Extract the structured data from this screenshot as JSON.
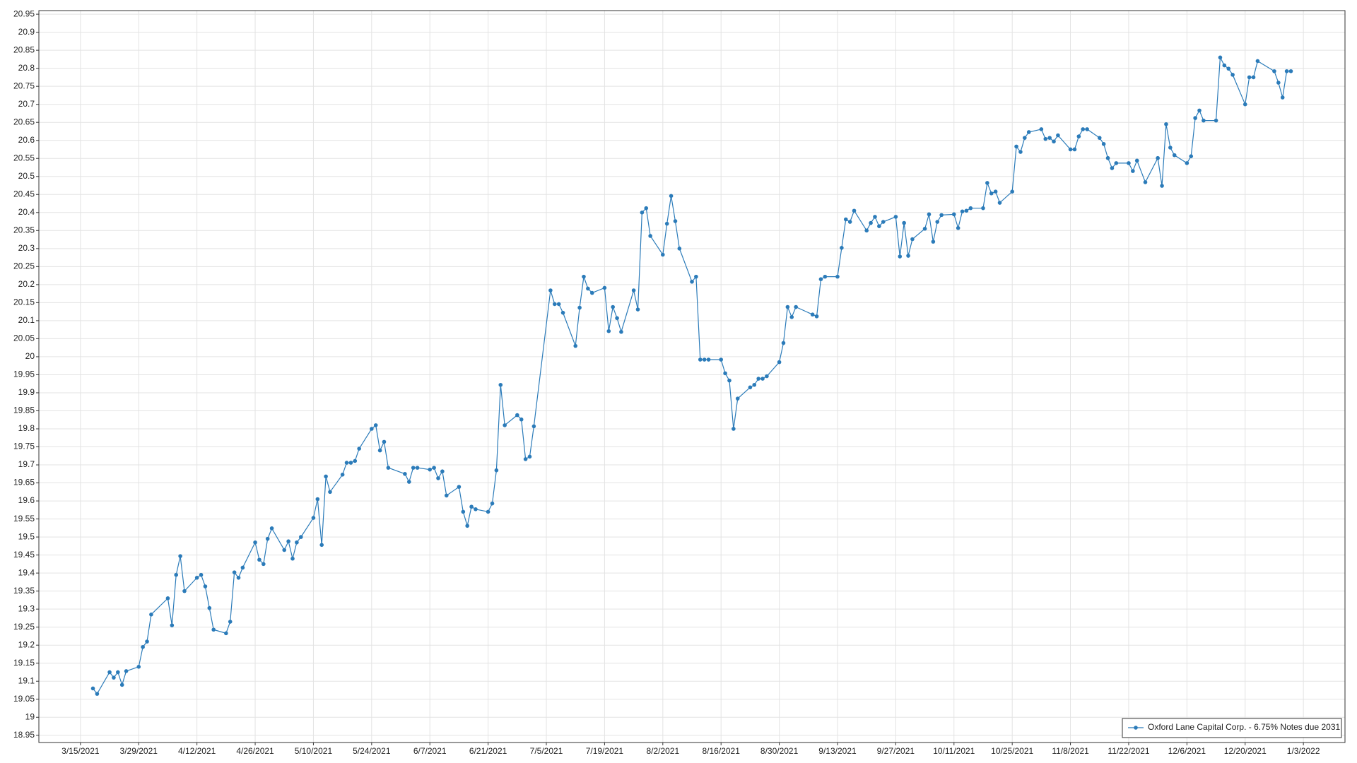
{
  "chart_data": {
    "type": "line",
    "x": [
      "3/18/2021",
      "3/19/2021",
      "3/22/2021",
      "3/23/2021",
      "3/24/2021",
      "3/25/2021",
      "3/26/2021",
      "3/29/2021",
      "3/30/2021",
      "3/31/2021",
      "4/1/2021",
      "4/5/2021",
      "4/6/2021",
      "4/7/2021",
      "4/8/2021",
      "4/9/2021",
      "4/12/2021",
      "4/13/2021",
      "4/14/2021",
      "4/15/2021",
      "4/16/2021",
      "4/19/2021",
      "4/20/2021",
      "4/21/2021",
      "4/22/2021",
      "4/23/2021",
      "4/26/2021",
      "4/27/2021",
      "4/28/2021",
      "4/29/2021",
      "4/30/2021",
      "5/3/2021",
      "5/4/2021",
      "5/5/2021",
      "5/6/2021",
      "5/7/2021",
      "5/10/2021",
      "5/11/2021",
      "5/12/2021",
      "5/13/2021",
      "5/14/2021",
      "5/17/2021",
      "5/18/2021",
      "5/19/2021",
      "5/20/2021",
      "5/21/2021",
      "5/24/2021",
      "5/25/2021",
      "5/26/2021",
      "5/27/2021",
      "5/28/2021",
      "6/1/2021",
      "6/2/2021",
      "6/3/2021",
      "6/4/2021",
      "6/7/2021",
      "6/8/2021",
      "6/9/2021",
      "6/10/2021",
      "6/11/2021",
      "6/14/2021",
      "6/15/2021",
      "6/16/2021",
      "6/17/2021",
      "6/18/2021",
      "6/21/2021",
      "6/22/2021",
      "6/23/2021",
      "6/24/2021",
      "6/25/2021",
      "6/28/2021",
      "6/29/2021",
      "6/30/2021",
      "7/1/2021",
      "7/2/2021",
      "7/6/2021",
      "7/7/2021",
      "7/8/2021",
      "7/9/2021",
      "7/12/2021",
      "7/13/2021",
      "7/14/2021",
      "7/15/2021",
      "7/16/2021",
      "7/19/2021",
      "7/20/2021",
      "7/21/2021",
      "7/22/2021",
      "7/23/2021",
      "7/26/2021",
      "7/27/2021",
      "7/28/2021",
      "7/29/2021",
      "7/30/2021",
      "8/2/2021",
      "8/3/2021",
      "8/4/2021",
      "8/5/2021",
      "8/6/2021",
      "8/9/2021",
      "8/10/2021",
      "8/11/2021",
      "8/12/2021",
      "8/13/2021",
      "8/16/2021",
      "8/17/2021",
      "8/18/2021",
      "8/19/2021",
      "8/20/2021",
      "8/23/2021",
      "8/24/2021",
      "8/25/2021",
      "8/26/2021",
      "8/27/2021",
      "8/30/2021",
      "8/31/2021",
      "9/1/2021",
      "9/2/2021",
      "9/3/2021",
      "9/7/2021",
      "9/8/2021",
      "9/9/2021",
      "9/10/2021",
      "9/13/2021",
      "9/14/2021",
      "9/15/2021",
      "9/16/2021",
      "9/17/2021",
      "9/20/2021",
      "9/21/2021",
      "9/22/2021",
      "9/23/2021",
      "9/24/2021",
      "9/27/2021",
      "9/28/2021",
      "9/29/2021",
      "9/30/2021",
      "10/1/2021",
      "10/4/2021",
      "10/5/2021",
      "10/6/2021",
      "10/7/2021",
      "10/8/2021",
      "10/11/2021",
      "10/12/2021",
      "10/13/2021",
      "10/14/2021",
      "10/15/2021",
      "10/18/2021",
      "10/19/2021",
      "10/20/2021",
      "10/21/2021",
      "10/22/2021",
      "10/25/2021",
      "10/26/2021",
      "10/27/2021",
      "10/28/2021",
      "10/29/2021",
      "11/1/2021",
      "11/2/2021",
      "11/3/2021",
      "11/4/2021",
      "11/5/2021",
      "11/8/2021",
      "11/9/2021",
      "11/10/2021",
      "11/11/2021",
      "11/12/2021",
      "11/15/2021",
      "11/16/2021",
      "11/17/2021",
      "11/18/2021",
      "11/19/2021",
      "11/22/2021",
      "11/23/2021",
      "11/24/2021",
      "11/26/2021",
      "11/29/2021",
      "11/30/2021",
      "12/1/2021",
      "12/2/2021",
      "12/3/2021",
      "12/6/2021",
      "12/7/2021",
      "12/8/2021",
      "12/9/2021",
      "12/10/2021",
      "12/13/2021",
      "12/14/2021",
      "12/15/2021",
      "12/16/2021",
      "12/17/2021",
      "12/20/2021",
      "12/21/2021",
      "12/22/2021",
      "12/23/2021",
      "12/27/2021",
      "12/28/2021",
      "12/29/2021",
      "12/30/2021",
      "12/31/2021"
    ],
    "series": [
      {
        "name": "Oxford Lane Capital Corp. - 6.75% Notes due 2031",
        "color": "#2b7bb9",
        "values": [
          19.08,
          19.065,
          19.125,
          19.11,
          19.125,
          19.09,
          19.128,
          19.14,
          19.195,
          19.21,
          19.285,
          19.33,
          19.255,
          19.395,
          19.447,
          19.35,
          19.387,
          19.395,
          19.363,
          19.303,
          19.243,
          19.233,
          19.265,
          19.402,
          19.387,
          19.415,
          19.485,
          19.437,
          19.425,
          19.495,
          19.524,
          19.464,
          19.488,
          19.44,
          19.485,
          19.5,
          19.553,
          19.605,
          19.478,
          19.668,
          19.625,
          19.673,
          19.706,
          19.706,
          19.711,
          19.745,
          19.8,
          19.81,
          19.74,
          19.764,
          19.692,
          19.675,
          19.653,
          19.692,
          19.692,
          19.687,
          19.692,
          19.663,
          19.682,
          19.615,
          19.639,
          19.57,
          19.531,
          19.584,
          19.577,
          19.57,
          19.593,
          19.685,
          19.922,
          19.81,
          19.838,
          19.826,
          19.716,
          19.723,
          19.807,
          20.184,
          20.146,
          20.146,
          20.122,
          20.03,
          20.136,
          20.222,
          20.189,
          20.177,
          20.191,
          20.071,
          20.138,
          20.107,
          20.069,
          20.184,
          20.131,
          20.4,
          20.412,
          20.335,
          20.283,
          20.369,
          20.446,
          20.376,
          20.3,
          20.208,
          20.222,
          19.992,
          19.992,
          19.992,
          19.992,
          19.954,
          19.934,
          19.8,
          19.884,
          19.915,
          19.922,
          19.939,
          19.939,
          19.946,
          19.985,
          20.038,
          20.138,
          20.11,
          20.138,
          20.117,
          20.112,
          20.215,
          20.222,
          20.222,
          20.302,
          20.381,
          20.374,
          20.405,
          20.35,
          20.371,
          20.388,
          20.362,
          20.374,
          20.388,
          20.278,
          20.371,
          20.28,
          20.326,
          20.355,
          20.395,
          20.319,
          20.374,
          20.393,
          20.395,
          20.357,
          20.403,
          20.405,
          20.412,
          20.412,
          20.482,
          20.453,
          20.458,
          20.427,
          20.458,
          20.583,
          20.568,
          20.607,
          20.623,
          20.631,
          20.604,
          20.607,
          20.597,
          20.614,
          20.575,
          20.575,
          20.611,
          20.631,
          20.631,
          20.607,
          20.59,
          20.551,
          20.523,
          20.537,
          20.537,
          20.515,
          20.544,
          20.484,
          20.551,
          20.474,
          20.645,
          20.58,
          20.559,
          20.537,
          20.556,
          20.662,
          20.683,
          20.655,
          20.655,
          20.83,
          20.808,
          20.799,
          20.782,
          20.7,
          20.775,
          20.775,
          20.82,
          20.792,
          20.76,
          20.719,
          20.792,
          20.792
        ]
      }
    ],
    "xlim": [
      "3/5/2021",
      "1/13/2022"
    ],
    "xticks": [
      "3/15/2021",
      "3/29/2021",
      "4/12/2021",
      "4/26/2021",
      "5/10/2021",
      "5/24/2021",
      "6/7/2021",
      "6/21/2021",
      "7/5/2021",
      "7/19/2021",
      "8/2/2021",
      "8/16/2021",
      "8/30/2021",
      "9/13/2021",
      "9/27/2021",
      "10/11/2021",
      "10/25/2021",
      "11/8/2021",
      "11/22/2021",
      "12/6/2021",
      "12/20/2021",
      "1/3/2022"
    ],
    "ylim": [
      18.93,
      20.96
    ],
    "yticks": [
      18.95,
      19,
      19.05,
      19.1,
      19.15,
      19.2,
      19.25,
      19.3,
      19.35,
      19.4,
      19.45,
      19.5,
      19.55,
      19.6,
      19.65,
      19.7,
      19.75,
      19.8,
      19.85,
      19.9,
      19.95,
      20,
      20.05,
      20.1,
      20.15,
      20.2,
      20.25,
      20.3,
      20.35,
      20.4,
      20.45,
      20.5,
      20.55,
      20.6,
      20.65,
      20.7,
      20.75,
      20.8,
      20.85,
      20.9,
      20.95
    ],
    "grid": true,
    "legend": "lower right"
  }
}
